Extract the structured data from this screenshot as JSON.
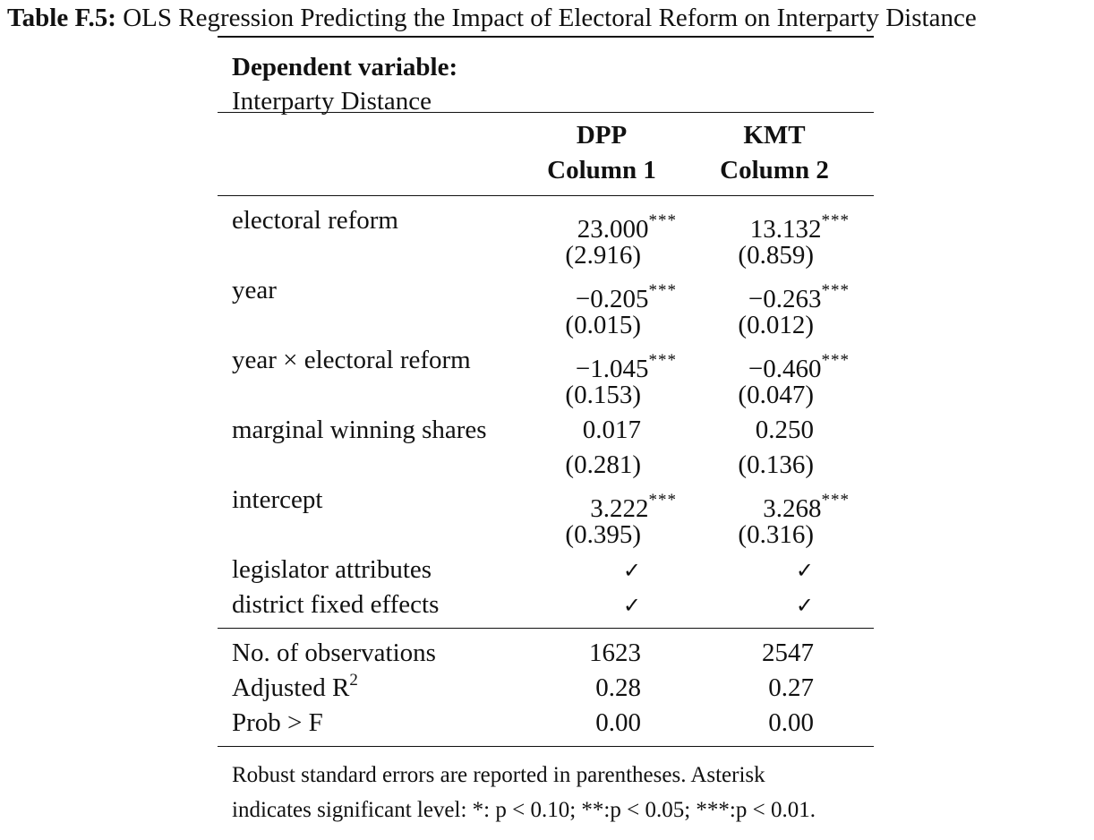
{
  "caption": {
    "label": "Table F.5:",
    "text": "OLS Regression Predicting the Impact of Electoral Reform on Interparty Distance"
  },
  "dependent_variable": {
    "title": "Dependent variable:",
    "name": "Interparty Distance"
  },
  "columns": [
    {
      "party": "DPP",
      "label": "Column 1"
    },
    {
      "party": "KMT",
      "label": "Column 2"
    }
  ],
  "rows": {
    "electoral_reform": {
      "label": "electoral reform",
      "c1": "23.000",
      "c1_stars": "***",
      "c1_se": "(2.916)",
      "c2": "13.132",
      "c2_stars": "***",
      "c2_se": "(0.859)"
    },
    "year": {
      "label": "year",
      "c1": "−0.205",
      "c1_stars": "***",
      "c1_se": "(0.015)",
      "c2": "−0.263",
      "c2_stars": "***",
      "c2_se": "(0.012)"
    },
    "interaction": {
      "label": "year × electoral reform",
      "c1": "−1.045",
      "c1_stars": "***",
      "c1_se": "(0.153)",
      "c2": "−0.460",
      "c2_stars": "***",
      "c2_se": "(0.047)"
    },
    "marginal": {
      "label": "marginal winning shares",
      "c1": "0.017",
      "c1_stars": "",
      "c1_se": "(0.281)",
      "c2": "0.250",
      "c2_stars": "",
      "c2_se": "(0.136)"
    },
    "intercept": {
      "label": "intercept",
      "c1": "3.222",
      "c1_stars": "***",
      "c1_se": "(0.395)",
      "c2": "3.268",
      "c2_stars": "***",
      "c2_se": "(0.316)"
    }
  },
  "controls": {
    "legislator": {
      "label": "legislator attributes",
      "c1": "✓",
      "c2": "✓"
    },
    "district": {
      "label": "district fixed effects",
      "c1": "✓",
      "c2": "✓"
    }
  },
  "stats": {
    "n_obs": {
      "label": "No.  of observations",
      "c1": "1623",
      "c2": "2547"
    },
    "adj_r2": {
      "label": "Adjusted R",
      "sup": "2",
      "c1": "0.28",
      "c2": "0.27"
    },
    "prob_f": {
      "label": "Prob > F",
      "c1": "0.00",
      "c2": "0.00"
    }
  },
  "notes": {
    "line1": "Robust standard errors are reported in parentheses. Asterisk",
    "line2": "indicates significant level: *: p < 0.10; **:p < 0.05; ***:p < 0.01."
  }
}
